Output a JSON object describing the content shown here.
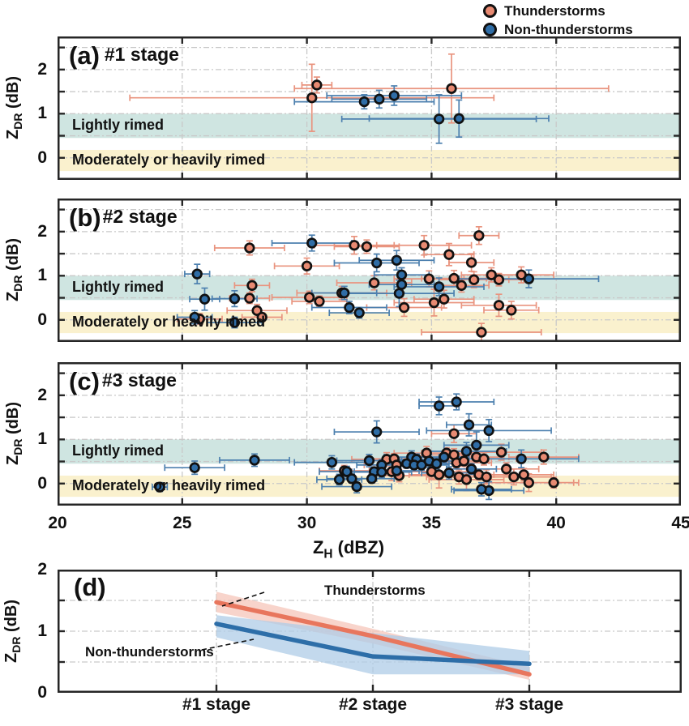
{
  "legend": {
    "items": [
      {
        "label": "Thunderstorms",
        "marker": "red-circle-icon",
        "color": "#E88A72"
      },
      {
        "label": "Non-thunderstorms",
        "marker": "blue-circle-icon",
        "color": "#2F6DA6"
      }
    ]
  },
  "axis": {
    "x_label_main": "Z",
    "x_label_sub": "H",
    "x_label_unit": " (dBZ)",
    "y_label_main": "Z",
    "y_label_sub": "DR",
    "y_label_unit": " (dB)",
    "x_ticks": [
      20,
      25,
      30,
      35,
      40,
      45
    ],
    "y_ticks": [
      0,
      1,
      2
    ],
    "xlim": [
      20,
      45
    ],
    "ylim": [
      -0.5,
      2.75
    ]
  },
  "bands": {
    "lightly": {
      "label": "Lightly rimed",
      "range": [
        0.45,
        1.0
      ],
      "color": "#CFE5E1"
    },
    "moderately": {
      "label": "Moderately or heavily rimed",
      "range": [
        -0.3,
        0.18
      ],
      "color": "#FAF1CE"
    }
  },
  "colors": {
    "red_marker": "#E88A72",
    "blue_marker": "#2F6DA6",
    "red_err": "#E9947F",
    "blue_err": "#4D80AF",
    "marker_edge": "#111111",
    "grid": "#C9C9C9",
    "axis": "#262626",
    "red_line": "#E8765D",
    "red_band": "#F6C6BA",
    "blue_line": "#2D6EA8",
    "blue_band": "#AFCCE7"
  },
  "chart_data": [
    {
      "id": "a",
      "type": "scatter",
      "panel_label": "(a)",
      "stage_label": "#1 stage",
      "xlim": [
        20,
        45
      ],
      "ylim": [
        -0.5,
        2.75
      ],
      "grid": "dashed",
      "series": [
        {
          "name": "Thunderstorms",
          "points": [
            [
              30.4,
              1.65,
              0.6,
              0.18
            ],
            [
              30.2,
              1.36,
              7.3,
              0.76
            ],
            [
              35.8,
              1.57,
              6.3,
              0.78
            ]
          ]
        },
        {
          "name": "Non-thunderstorms",
          "points": [
            [
              32.3,
              1.27,
              2.8,
              0.16
            ],
            [
              32.9,
              1.33,
              1.9,
              0.2
            ],
            [
              33.5,
              1.41,
              2.7,
              0.22
            ],
            [
              35.3,
              0.88,
              3.9,
              0.55
            ],
            [
              36.1,
              0.89,
              3.6,
              0.42
            ]
          ]
        }
      ]
    },
    {
      "id": "b",
      "type": "scatter",
      "panel_label": "(b)",
      "stage_label": "#2 stage",
      "xlim": [
        20,
        45
      ],
      "ylim": [
        -0.5,
        2.75
      ],
      "grid": "dashed",
      "series": [
        {
          "name": "Thunderstorms",
          "points": [
            [
              25.7,
              0.02,
              0.9,
              0.12
            ],
            [
              27.7,
              1.63,
              1.4,
              0.16
            ],
            [
              27.8,
              0.78,
              0.7,
              0.14
            ],
            [
              27.7,
              0.49,
              0.8,
              0.12
            ],
            [
              28.0,
              0.21,
              1.2,
              0.14
            ],
            [
              28.2,
              0.06,
              0.8,
              0.1
            ],
            [
              30.0,
              1.22,
              1.3,
              0.18
            ],
            [
              30.1,
              0.51,
              1.5,
              0.14
            ],
            [
              30.5,
              0.42,
              1.1,
              0.12
            ],
            [
              31.4,
              0.61,
              1.8,
              0.15
            ],
            [
              31.9,
              1.69,
              1.6,
              0.2
            ],
            [
              32.4,
              1.66,
              1.3,
              0.15
            ],
            [
              32.7,
              0.84,
              1.5,
              0.16
            ],
            [
              33.9,
              0.28,
              1.5,
              0.2
            ],
            [
              34.7,
              1.69,
              1.9,
              0.22
            ],
            [
              34.9,
              0.93,
              1.4,
              0.18
            ],
            [
              35.1,
              0.39,
              1.6,
              0.3
            ],
            [
              35.5,
              0.47,
              1.2,
              0.2
            ],
            [
              35.7,
              1.48,
              1.0,
              0.25
            ],
            [
              35.9,
              0.94,
              1.3,
              0.18
            ],
            [
              36.2,
              0.78,
              1.1,
              0.15
            ],
            [
              36.6,
              1.3,
              0.9,
              0.2
            ],
            [
              36.7,
              0.91,
              1.4,
              0.18
            ],
            [
              36.9,
              1.91,
              0.8,
              0.2
            ],
            [
              37.0,
              -0.28,
              2.4,
              0.2
            ],
            [
              37.4,
              1.02,
              1.2,
              0.16
            ],
            [
              37.7,
              0.91,
              1.0,
              0.14
            ],
            [
              37.7,
              0.33,
              1.5,
              0.25
            ],
            [
              38.2,
              0.22,
              1.1,
              0.2
            ],
            [
              38.6,
              1.02,
              1.3,
              0.18
            ]
          ]
        },
        {
          "name": "Non-thunderstorms",
          "points": [
            [
              25.6,
              1.04,
              0.5,
              0.22
            ],
            [
              25.9,
              0.47,
              0.6,
              0.25
            ],
            [
              25.5,
              0.06,
              0.7,
              0.15
            ],
            [
              27.1,
              0.48,
              0.9,
              0.18
            ],
            [
              27.1,
              -0.06,
              1.1,
              0.12
            ],
            [
              30.2,
              1.74,
              1.6,
              0.18
            ],
            [
              31.5,
              0.61,
              1.3,
              0.15
            ],
            [
              31.7,
              0.28,
              1.5,
              0.14
            ],
            [
              32.1,
              0.16,
              1.2,
              0.12
            ],
            [
              32.8,
              1.29,
              1.7,
              0.2
            ],
            [
              33.6,
              1.35,
              1.5,
              0.22
            ],
            [
              33.8,
              1.02,
              1.1,
              0.16
            ],
            [
              33.8,
              0.8,
              1.3,
              0.18
            ],
            [
              33.7,
              0.6,
              2.2,
              0.3
            ],
            [
              35.3,
              0.75,
              1.8,
              0.2
            ],
            [
              38.9,
              0.93,
              2.8,
              0.2
            ]
          ]
        }
      ]
    },
    {
      "id": "c",
      "type": "scatter",
      "panel_label": "(c)",
      "stage_label": "#3 stage",
      "xlim": [
        20,
        45
      ],
      "ylim": [
        -0.5,
        2.75
      ],
      "grid": "dashed",
      "series": [
        {
          "name": "Thunderstorms",
          "points": [
            [
              31.5,
              0.29,
              1.0,
              0.12
            ],
            [
              33.2,
              0.55,
              1.4,
              0.15
            ],
            [
              33.5,
              0.56,
              1.1,
              0.12
            ],
            [
              33.6,
              0.42,
              1.3,
              0.14
            ],
            [
              33.4,
              0.27,
              1.6,
              0.2
            ],
            [
              33.7,
              0.18,
              1.2,
              0.14
            ],
            [
              34.8,
              0.69,
              1.3,
              0.15
            ],
            [
              35.0,
              0.27,
              1.5,
              0.16
            ],
            [
              35.3,
              0.2,
              1.2,
              0.3
            ],
            [
              35.6,
              0.69,
              1.0,
              0.12
            ],
            [
              35.9,
              0.65,
              1.2,
              0.14
            ],
            [
              36.0,
              0.47,
              1.4,
              0.12
            ],
            [
              36.3,
              0.51,
              1.0,
              0.12
            ],
            [
              36.1,
              0.15,
              1.3,
              0.16
            ],
            [
              36.4,
              0.09,
              1.5,
              0.25
            ],
            [
              36.8,
              0.6,
              1.1,
              0.12
            ],
            [
              37.1,
              0.56,
              1.3,
              0.14
            ],
            [
              36.9,
              0.2,
              1.2,
              0.12
            ],
            [
              37.2,
              0.15,
              1.4,
              0.16
            ],
            [
              35.9,
              1.13,
              0.9,
              0.2
            ],
            [
              37.8,
              0.71,
              1.6,
              0.18
            ],
            [
              38.0,
              0.33,
              1.3,
              0.14
            ],
            [
              38.3,
              0.15,
              1.5,
              0.18
            ],
            [
              38.7,
              0.2,
              1.2,
              0.14
            ],
            [
              38.9,
              0.02,
              1.8,
              0.2
            ],
            [
              39.5,
              0.6,
              1.4,
              0.16
            ],
            [
              39.9,
              0.02,
              1.0,
              0.12
            ]
          ]
        },
        {
          "name": "Non-thunderstorms",
          "points": [
            [
              24.1,
              -0.08,
              0.3,
              0.1
            ],
            [
              25.5,
              0.36,
              1.2,
              0.15
            ],
            [
              27.9,
              0.53,
              1.4,
              0.14
            ],
            [
              31.0,
              0.48,
              1.5,
              0.15
            ],
            [
              31.6,
              0.27,
              1.1,
              0.12
            ],
            [
              31.3,
              0.09,
              0.9,
              0.12
            ],
            [
              31.8,
              0.11,
              1.0,
              0.1
            ],
            [
              32.0,
              -0.07,
              1.4,
              0.14
            ],
            [
              32.5,
              0.52,
              1.3,
              0.14
            ],
            [
              32.8,
              1.17,
              1.7,
              0.25
            ],
            [
              33.0,
              0.42,
              1.0,
              0.12
            ],
            [
              32.7,
              0.27,
              0.8,
              0.1
            ],
            [
              33.0,
              0.26,
              1.2,
              0.12
            ],
            [
              32.6,
              0.11,
              0.9,
              0.1
            ],
            [
              33.6,
              0.29,
              0.9,
              0.1
            ],
            [
              34.2,
              0.6,
              1.1,
              0.14
            ],
            [
              34.4,
              0.55,
              0.9,
              0.12
            ],
            [
              34.0,
              0.45,
              1.0,
              0.1
            ],
            [
              34.3,
              0.42,
              0.8,
              0.1
            ],
            [
              34.6,
              0.42,
              1.1,
              0.12
            ],
            [
              34.9,
              0.51,
              1.2,
              0.14
            ],
            [
              35.2,
              0.45,
              0.9,
              0.12
            ],
            [
              35.5,
              0.6,
              1.0,
              0.12
            ],
            [
              35.7,
              0.24,
              1.1,
              0.14
            ],
            [
              35.3,
              1.76,
              0.8,
              0.2
            ],
            [
              36.0,
              1.85,
              1.5,
              0.18
            ],
            [
              36.5,
              1.33,
              0.9,
              0.25
            ],
            [
              36.8,
              0.87,
              1.3,
              0.3
            ],
            [
              36.4,
              0.73,
              1.6,
              0.2
            ],
            [
              37.3,
              1.2,
              2.5,
              0.25
            ],
            [
              36.6,
              0.33,
              1.0,
              0.12
            ],
            [
              37.3,
              -0.16,
              1.4,
              0.2
            ],
            [
              37.0,
              -0.13,
              1.2,
              0.15
            ],
            [
              38.6,
              0.56,
              2.3,
              0.2
            ]
          ]
        }
      ]
    },
    {
      "id": "d",
      "type": "line",
      "panel_label": "(d)",
      "categories": [
        "#1 stage",
        "#2 stage",
        "#3 stage"
      ],
      "ylim": [
        0,
        2
      ],
      "y_ticks": [
        0,
        1,
        2
      ],
      "grid": "dashed",
      "series": [
        {
          "name": "Thunderstorms",
          "values": [
            1.47,
            0.92,
            0.3
          ],
          "band_upper": [
            1.64,
            1.04,
            0.42
          ],
          "band_lower": [
            1.31,
            0.8,
            0.21
          ]
        },
        {
          "name": "Non-thunderstorms",
          "values": [
            1.12,
            0.59,
            0.47
          ],
          "band_upper": [
            1.26,
            0.97,
            0.68
          ],
          "band_lower": [
            0.9,
            0.3,
            0.3
          ]
        }
      ],
      "annotations": [
        {
          "text": "Thunderstorms"
        },
        {
          "text": "Non-thunderstorms"
        }
      ]
    }
  ]
}
